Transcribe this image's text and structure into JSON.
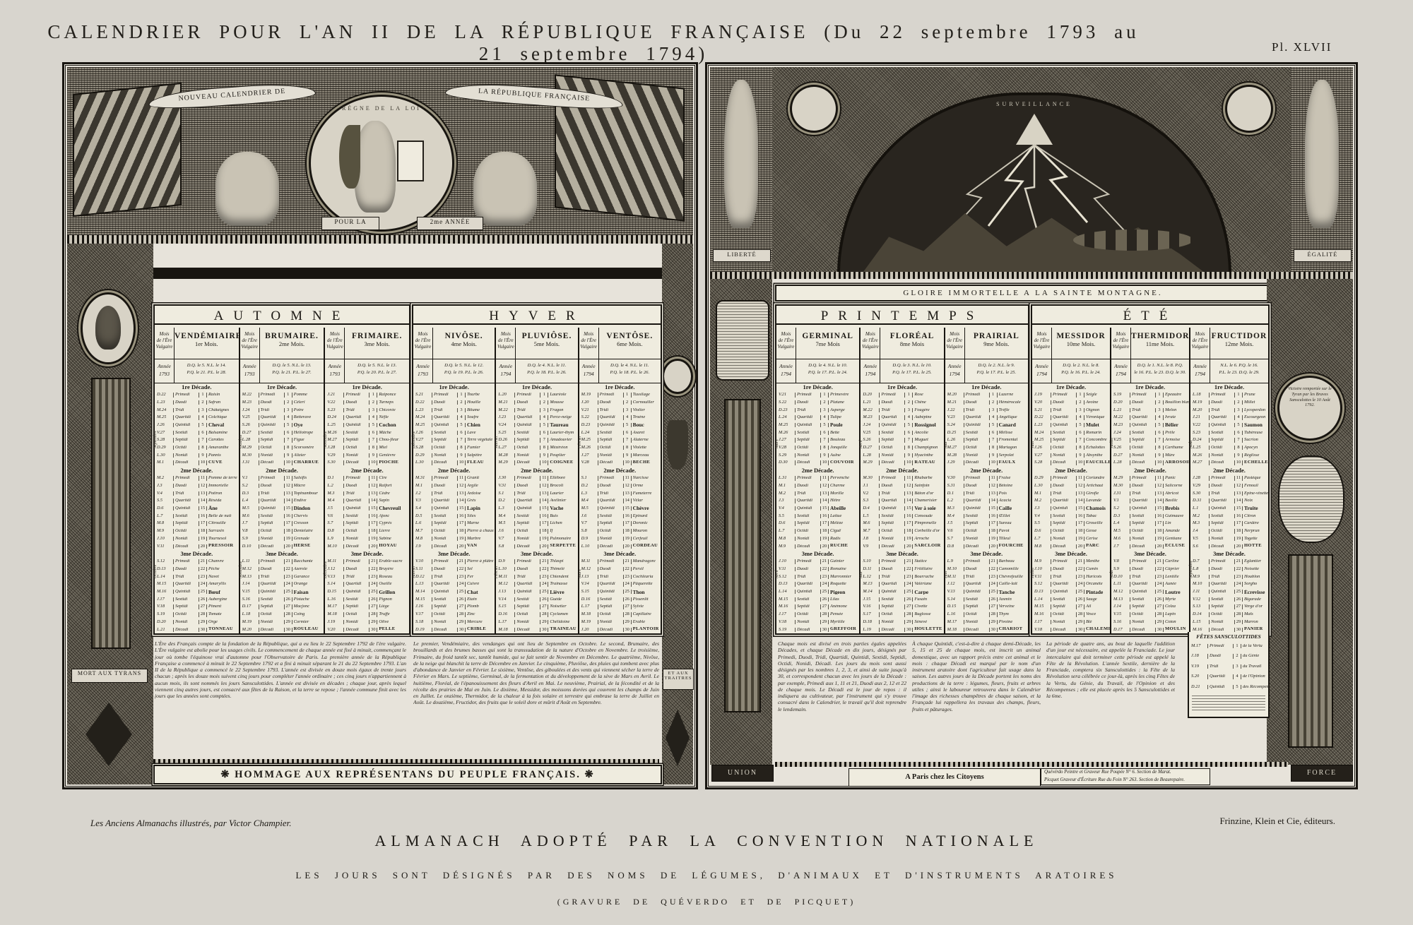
{
  "page": {
    "title": "CALENDRIER POUR L'AN II DE LA RÉPUBLIQUE FRANÇAISE (Du 22 septembre 1793 au 21 septembre 1794)",
    "plate_number": "Pl. XLVII",
    "captions": {
      "series_credit": "Les Anciens Almanachs illustrés, par Victor Champier.",
      "publisher_credit": "Frinzine, Klein et Cie, éditeurs.",
      "adoption": "ALMANACH ADOPTÉ PAR LA CONVENTION NATIONALE",
      "subtitle": "LES JOURS SONT DÉSIGNÉS PAR DES NOMS DE LÉGUMES, D'ANIMAUX ET D'INSTRUMENTS ARATOIRES",
      "engravers": "(GRAVURE DE QUÉVERDO ET DE PICQUET)"
    }
  },
  "left_panel": {
    "ribbon_left": "NOUVEAU CALENDRIER DE",
    "ribbon_right": "LA RÉPUBLIQUE FRANÇAISE",
    "medallion_text": "RÈGNE DE LA LOI",
    "plinth_left": "POUR LA",
    "plinth_right": "2me ANNÉE",
    "column_left_plinth": "MORT AUX TYRANS",
    "column_right_plinth": "ET AUX TRAITRES",
    "banner": "HOMMAGE AUX REPRÉSENTANS DU PEUPLE FRANÇAIS.",
    "paragraphs": [
      "L'Ère des Français compte de la fondation de la République, qui a eu lieu le 22 Septembre 1792 de l'ère vulgaire. L'Ère vulgaire est abolie pour les usages civils. Le commencement de chaque année est fixé à minuit, commençant le jour où tombe l'équinoxe vrai d'automne pour l'Observatoire de Paris. La première année de la République Française a commencé à minuit le 22 Septembre 1792 et a fini à minuit séparant le 21 du 22 Septembre 1793. L'an II de la République a commencé le 22 Septembre 1793. L'année est divisée en douze mois égaux de trente jours chacun ; après les douze mois suivent cinq jours pour compléter l'année ordinaire ; ces cinq jours n'appartiennent à aucun mois, ils sont nommés les jours Sansculottides. L'année est divisée en décades ; chaque jour, après lequel viennent cinq autres jours, est consacré aux fêtes de la Raison, et la terre se repose ; l'année commune finit avec les jours que les années sont comptées.",
      "Le premier, Vendémiaire, des vendanges qui ont lieu de Septembre en Octobre. Le second, Brumaire, des brouillards et des brumes basses qui sont la transsudation de la nature d'Octobre en Novembre. Le troisième, Frimaire, du froid tantôt sec, tantôt humide, qui se fait sentir de Novembre en Décembre. Le quatrième, Nivôse, de la neige qui blanchit la terre de Décembre en Janvier. Le cinquième, Pluviôse, des pluies qui tombent avec plus d'abondance de Janvier en Février. Le sixième, Ventôse, des giboulées et des vents qui viennent sécher la terre de Février en Mars. Le septième, Germinal, de la fermentation et du développement de la sève de Mars en Avril. Le huitième, Floréal, de l'épanouissement des fleurs d'Avril en Mai. Le neuvième, Prairial, de la fécondité et de la récolte des prairies de Mai en Juin. Le dixième, Messidor, des moissons dorées qui couvrent les champs de Juin en Juillet. Le onzième, Thermidor, de la chaleur à la fois solaire et terrestre qui embrase la terre de Juillet en Août. Le douzième, Fructidor, des fruits que le soleil dore et mûrit d'Août en Septembre."
    ]
  },
  "right_panel": {
    "arch_text": "SURVEILLANCE",
    "banner": "GLOIRE IMMORTELLE A LA SAINTE MONTAGNE.",
    "statue_left": "LIBERTÉ",
    "statue_right": "ÉGALITÉ",
    "plinth_left": "UNION",
    "plinth_right": "FORCE",
    "victory_medallion": "Victoire remportée sur le Tyran par les Braves Sansculottes le 10 Août 1792.",
    "address_label": "A Paris chez les Citoyens",
    "address_lines": [
      "Quévérdo Peintre et Graveur Rue Poupée N° 6. Section de Marat.",
      "Picquet Graveur d'Écriture Rue du Foin N° 263. Section de Beaurepaire."
    ],
    "paragraphs": [
      "Chaque mois est divisé en trois parties égales appelées Décades, et chaque Décade en dix jours, désignés par Primedi, Duodi, Tridi, Quartidi, Quintidi, Sextidi, Septidi, Octidi, Nonidi, Décadi. Les jours du mois sont aussi désignés par les nombres 1, 2, 3, et ainsi de suite jusqu'à 30, et correspondent chacun avec les jours de la Décade : par exemple, Primedi aux 1, 11 et 21, Duodi aux 2, 12 et 22 de chaque mois. Le Décadi est le jour de repos : il indiquera au cultivateur, par l'instrument qui s'y trouve consacré dans le Calendrier, le travail qu'il doit reprendre le lendemain.",
      "À chaque Quintidi, c'est-à-dire à chaque demi-Décade, les 5, 15 et 25 de chaque mois, est inscrit un animal domestique, avec un rapport précis entre cet animal et le mois : chaque Décadi est marqué par le nom d'un instrument aratoire dont l'agriculteur fait usage dans la saison. Les autres jours de la Décade portent les noms des productions de la terre : légumes, fleurs, fruits et arbres utiles ; ainsi le laboureur retrouvera dans le Calendrier l'image des richesses champêtres de chaque saison, et la Françade lui rappellera les travaux des champs, fleurs, fruits et pâturages.",
      "La période de quatre ans, au bout de laquelle l'addition d'un jour est nécessaire, est appelée la Franciade. Le jour intercalaire qui doit terminer cette période est appelé la Fête de la Révolution. L'année Sextile, dernière de la Franciade, comptera six Sansculottides : la Fête de la Révolution sera célébrée ce jour-là, après les cinq Fêtes de la Vertu, du Génie, du Travail, de l'Opinion et des Récompenses ; elle est placée après les 5 Sansculottides et la 6me."
    ]
  },
  "calendar": {
    "era_column_label_lines": [
      "Mois",
      "de l'Ère",
      "Vulgaire"
    ],
    "year_label": "Année",
    "decade_labels": [
      "1re Décade.",
      "2me Décade.",
      "3me Décade."
    ],
    "decade_day_names": [
      "Primedi",
      "Duodi",
      "Tridi",
      "Quartidi",
      "Quintidi",
      "Sextidi",
      "Septidi",
      "Octidi",
      "Nonidi",
      "Décadi"
    ],
    "weekday_letters": [
      "D",
      "L",
      "M",
      "M",
      "J",
      "V",
      "S"
    ],
    "seasons": [
      {
        "name": "AUTOMNE",
        "months": [
          0,
          1,
          2
        ]
      },
      {
        "name": "HYVER",
        "months": [
          3,
          4,
          5
        ]
      },
      {
        "name": "PRINTEMPS",
        "months": [
          6,
          7,
          8
        ]
      },
      {
        "name": "ÉTÉ",
        "months": [
          9,
          10,
          11
        ]
      }
    ],
    "months": [
      {
        "name": "VENDÉMIAIRE.",
        "ordinal": "1er Mois.",
        "year": "1793",
        "moon": [
          "D.Q. le 5. N.L. le 14.",
          "P.Q. le 21. P.L. le 28."
        ],
        "greg_start": 22,
        "greg_month_len": 30,
        "weekday_start": 0,
        "greg_labels": [
          "Septembre",
          "Octobre"
        ],
        "days": [
          "Raisin",
          "Safran",
          "Châtaignes",
          "Colchique",
          "Cheval",
          "Balsamine",
          "Carottes",
          "Amaranthe",
          "Pannis",
          "Cuve",
          "Pomme de terre",
          "Immortelle",
          "Potiron",
          "Réséda",
          "Âne",
          "Belle de nuit",
          "Citrouille",
          "Sarrasin",
          "Tournesol",
          "Pressoir",
          "Chanvre",
          "Pêche",
          "Navet",
          "Amaryllis",
          "Bœuf",
          "Aubergine",
          "Piment",
          "Tomate",
          "Orge",
          "Tonneau"
        ]
      },
      {
        "name": "BRUMAIRE.",
        "ordinal": "2me Mois.",
        "year": "1793",
        "moon": [
          "D.Q. le 5. N.L. le 13.",
          "P.Q. le 21. P.L. le 27."
        ],
        "greg_start": 22,
        "greg_month_len": 31,
        "weekday_start": 2,
        "greg_labels": [
          "Octobre",
          "Novembre"
        ],
        "days": [
          "Pomme",
          "Céleri",
          "Poire",
          "Betterave",
          "Oye",
          "Héliotrope",
          "Figue",
          "Scorsonère",
          "Alizier",
          "Charrue",
          "Salsifis",
          "Mâcre",
          "Topinambour",
          "Endive",
          "Dindon",
          "Chervis",
          "Cresson",
          "Dentelaire",
          "Grenade",
          "Herse",
          "Bacchante",
          "Azerole",
          "Garance",
          "Orange",
          "Faisan",
          "Pistache",
          "Macjonc",
          "Coing",
          "Cormier",
          "Rouleau"
        ]
      },
      {
        "name": "FRIMAIRE.",
        "ordinal": "3me Mois.",
        "year": "1793",
        "moon": [
          "D.Q. le 5. N.L. le 13.",
          "P.Q. le 20. P.L. le 27."
        ],
        "greg_start": 21,
        "greg_month_len": 30,
        "weekday_start": 4,
        "greg_labels": [
          "Novembre",
          "Décembre"
        ],
        "days": [
          "Raiponce",
          "Turneps",
          "Chicorée",
          "Nèfle",
          "Cochon",
          "Mâche",
          "Chou-fleur",
          "Miel",
          "Genièvre",
          "Pioche",
          "Cire",
          "Raifort",
          "Cèdre",
          "Sapin",
          "Chevreuil",
          "Ajonc",
          "Cyprès",
          "Lierre",
          "Sabine",
          "Hoyau",
          "Érable-sucre",
          "Bruyère",
          "Roseau",
          "Oseille",
          "Grillon",
          "Pignon",
          "Liège",
          "Truffe",
          "Olive",
          "Pelle"
        ]
      },
      {
        "name": "NIVÔSE.",
        "ordinal": "4me Mois.",
        "year": "1793",
        "moon": [
          "D.Q. le 5. N.L. le 12.",
          "P.Q. le 19. P.L. le 26."
        ],
        "greg_start": 21,
        "greg_month_len": 31,
        "weekday_start": 6,
        "greg_labels": [
          "Décembre",
          "Janvier"
        ],
        "days": [
          "Tourbe",
          "Houille",
          "Bitume",
          "Soufre",
          "Chien",
          "Lave",
          "Terre végétale",
          "Fumier",
          "Salpêtre",
          "Fléau",
          "Granit",
          "Argile",
          "Ardoise",
          "Grès",
          "Lapin",
          "Silex",
          "Marne",
          "Pierre à chaux",
          "Marbre",
          "Van",
          "Pierre à plâtre",
          "Sel",
          "Fer",
          "Cuivre",
          "Chat",
          "Étain",
          "Plomb",
          "Zinc",
          "Mercure",
          "Crible"
        ]
      },
      {
        "name": "PLUVIÔSE.",
        "ordinal": "5me Mois.",
        "year": "1794",
        "moon": [
          "D.Q. le 4. N.L. le 11.",
          "P.Q. le 18. P.L. le 26."
        ],
        "greg_start": 20,
        "greg_month_len": 31,
        "weekday_start": 1,
        "greg_labels": [
          "Janvier",
          "Février"
        ],
        "days": [
          "Lauréole",
          "Mousse",
          "Fragon",
          "Perce-neige",
          "Taureau",
          "Laurier-thym",
          "Amadouvier",
          "Mézéréon",
          "Peuplier",
          "Coignée",
          "Ellébore",
          "Brocoli",
          "Laurier",
          "Avelinier",
          "Vache",
          "Buis",
          "Lichen",
          "If",
          "Pulmonaire",
          "Serpette",
          "Thlaspi",
          "Thimelé",
          "Chiendent",
          "Trainasse",
          "Lièvre",
          "Guède",
          "Noisetier",
          "Cyclamen",
          "Chélidoine",
          "Traineau"
        ]
      },
      {
        "name": "VENTÔSE.",
        "ordinal": "6me Mois.",
        "year": "1794",
        "moon": [
          "D.Q. le 4. N.L. le 11.",
          "P.Q. le 18. P.L. le 26."
        ],
        "greg_start": 19,
        "greg_month_len": 28,
        "weekday_start": 3,
        "greg_labels": [
          "Février",
          "Mars"
        ],
        "days": [
          "Tussilage",
          "Cornouiller",
          "Violier",
          "Troène",
          "Bouc",
          "Asaret",
          "Alaterne",
          "Violette",
          "Marceau",
          "Bêche",
          "Narcisse",
          "Orme",
          "Fumeterre",
          "Vélar",
          "Chèvre",
          "Épinard",
          "Doronic",
          "Mouron",
          "Cerfeuil",
          "Cordeau",
          "Mandragore",
          "Persil",
          "Cochléaria",
          "Pâquerette",
          "Thon",
          "Pissenlit",
          "Sylvie",
          "Capillaire",
          "Érable",
          "Plantoir"
        ]
      },
      {
        "name": "GERMINAL",
        "ordinal": "7me Mois",
        "year": "1794",
        "moon": [
          "D.Q. le 4. N.L. le 10.",
          "P.Q. le 17. P.L. le 24."
        ],
        "greg_start": 21,
        "greg_month_len": 31,
        "weekday_start": 5,
        "greg_labels": [
          "Mars",
          "Avril"
        ],
        "days": [
          "Primevère",
          "Platane",
          "Asperge",
          "Tulipe",
          "Poule",
          "Bette",
          "Bouleau",
          "Jonquille",
          "Aulne",
          "Couvoir",
          "Pervenche",
          "Charme",
          "Morille",
          "Hêtre",
          "Abeille",
          "Laitue",
          "Mélèze",
          "Ciguë",
          "Radis",
          "Ruche",
          "Gainier",
          "Romaine",
          "Marronnier",
          "Roquette",
          "Pigeon",
          "Lilas",
          "Anémone",
          "Pensée",
          "Myrtille",
          "Greffoir"
        ]
      },
      {
        "name": "FLORÉAL",
        "ordinal": "8me Mois",
        "year": "1794",
        "moon": [
          "D.Q. le 3. N.L. le 10.",
          "P.Q. le 17. P.L. le 25."
        ],
        "greg_start": 20,
        "greg_month_len": 30,
        "weekday_start": 0,
        "greg_labels": [
          "Avril",
          "Mai"
        ],
        "days": [
          "Rose",
          "Chêne",
          "Fougère",
          "Aubépine",
          "Rossignol",
          "Ancolie",
          "Muguet",
          "Champignon",
          "Hyacinthe",
          "Râteau",
          "Rhubarbe",
          "Sainfoin",
          "Bâton d'or",
          "Chamerisier",
          "Ver à soie",
          "Consoude",
          "Pimprenelle",
          "Corbeille d'or",
          "Arroche",
          "Sarcloir",
          "Statice",
          "Fritillaire",
          "Bourrache",
          "Valériane",
          "Carpe",
          "Fusain",
          "Civette",
          "Buglosse",
          "Sénevé",
          "Houlette"
        ]
      },
      {
        "name": "PRAIRIAL",
        "ordinal": "9me Mois.",
        "year": "1794",
        "moon": [
          "D.Q. le 2. N.L. le 9.",
          "P.Q. le 17. P.L. le 25."
        ],
        "greg_start": 20,
        "greg_month_len": 31,
        "weekday_start": 2,
        "greg_labels": [
          "Mai",
          "Juin"
        ],
        "days": [
          "Luzerne",
          "Hémérocale",
          "Trèfle",
          "Angélique",
          "Canard",
          "Mélisse",
          "Fromental",
          "Martagon",
          "Serpolet",
          "Faulx",
          "Fraise",
          "Bétoine",
          "Pois",
          "Acacia",
          "Caille",
          "Œillet",
          "Sureau",
          "Pavot",
          "Tilleul",
          "Fourche",
          "Barbeau",
          "Camomille",
          "Chèvrefeuille",
          "Caille-lait",
          "Tanche",
          "Jasmin",
          "Verveine",
          "Thym",
          "Pivoine",
          "Chariot"
        ]
      },
      {
        "name": "MESSIDOR",
        "ordinal": "10me Mois.",
        "year": "1794",
        "moon": [
          "D.Q. le 2. N.L. le 8.",
          "P.Q. le 16. P.L. le 24."
        ],
        "greg_start": 19,
        "greg_month_len": 30,
        "weekday_start": 4,
        "greg_labels": [
          "Juin",
          "Juillet"
        ],
        "days": [
          "Seigle",
          "Avoine",
          "Oignon",
          "Véronique",
          "Mulet",
          "Romarin",
          "Concombre",
          "Échalottes",
          "Absynthe",
          "Faucille",
          "Coriandre",
          "Artichaut",
          "Girofle",
          "Lavande",
          "Chamois",
          "Tabac",
          "Groseille",
          "Gesse",
          "Cerise",
          "Parc",
          "Menthe",
          "Cumin",
          "Haricots",
          "Orcanète",
          "Pintade",
          "Sauge",
          "Ail",
          "Vesce",
          "Blé",
          "Chalémie"
        ]
      },
      {
        "name": "THERMIDOR",
        "ordinal": "11me Mois.",
        "year": "1794",
        "moon": [
          "D.Q. le 1. N.L. le 8. P.Q.",
          "le 16. P.L. le 23. D.Q. le 30."
        ],
        "greg_start": 19,
        "greg_month_len": 31,
        "weekday_start": 6,
        "greg_labels": [
          "Juillet",
          "Août"
        ],
        "days": [
          "Épeautre",
          "Bouillon blanc",
          "Melon",
          "Ivraie",
          "Bélier",
          "Prêle",
          "Armoise",
          "Carthame",
          "Mûre",
          "Arrosoir",
          "Panic",
          "Salicorne",
          "Abricot",
          "Basilic",
          "Brebis",
          "Guimauve",
          "Lin",
          "Amande",
          "Gentiane",
          "Écluse",
          "Carline",
          "Câprier",
          "Lentille",
          "Aunée",
          "Loutre",
          "Myrte",
          "Colza",
          "Lupin",
          "Coton",
          "Moulin"
        ]
      },
      {
        "name": "FRUCTIDOR",
        "ordinal": "12me Mois.",
        "year": "1794",
        "moon": [
          "N.L. le 6. P.Q. le 16.",
          "P.L. le 23. D.Q. le 29."
        ],
        "greg_start": 18,
        "greg_month_len": 31,
        "weekday_start": 1,
        "greg_labels": [
          "Août",
          "Septembre"
        ],
        "days": [
          "Prune",
          "Millet",
          "Lycoperdon",
          "Escourgeon",
          "Saumon",
          "Tubéreuse",
          "Sucrion",
          "Apocyn",
          "Réglisse",
          "Échelle",
          "Pastèque",
          "Fenouil",
          "Épine-vinette",
          "Noix",
          "Truite",
          "Citron",
          "Cardère",
          "Nerprun",
          "Tagette",
          "Hotte",
          "Églantier",
          "Noisette",
          "Houblon",
          "Sorgho",
          "Écrevisse",
          "Bigarade",
          "Verge d'or",
          "Maïs",
          "Marron",
          "Panier"
        ]
      }
    ],
    "sansculottides": {
      "title": "FÊTES SANSCULOTTIDES",
      "greg_start": 17,
      "weekday_start": 3,
      "days": [
        "de la Vertu",
        "du Génie",
        "du Travail",
        "de l'Opinion",
        "des Récompenses"
      ]
    }
  }
}
